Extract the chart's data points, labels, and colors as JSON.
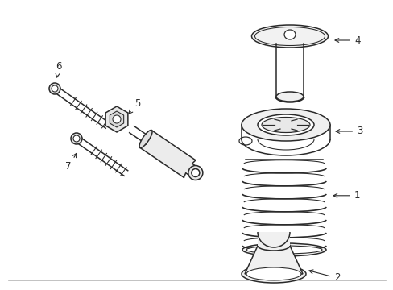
{
  "bg_color": "#ffffff",
  "line_color": "#2a2a2a",
  "figsize": [
    4.89,
    3.6
  ],
  "dpi": 100,
  "label_fontsize": 8.5,
  "line_width": 1.1
}
